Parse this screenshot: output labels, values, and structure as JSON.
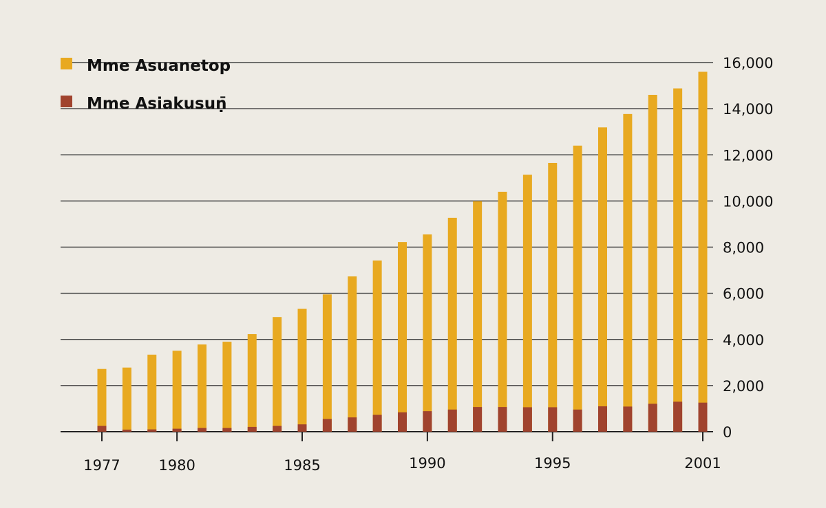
{
  "chart_data": {
    "type": "bar",
    "stacked": false,
    "overlay": true,
    "categories": [
      1977,
      1978,
      1979,
      1980,
      1981,
      1982,
      1983,
      1984,
      1985,
      1986,
      1987,
      1988,
      1989,
      1990,
      1991,
      1992,
      1993,
      1994,
      1995,
      1996,
      1997,
      1998,
      1999,
      2000,
      2001
    ],
    "series": [
      {
        "name": "Mme Asuanetop",
        "color": "#e8a920",
        "values": [
          2720,
          2780,
          3340,
          3510,
          3780,
          3900,
          4230,
          4970,
          5330,
          5950,
          6730,
          7420,
          8220,
          8550,
          9270,
          9990,
          10400,
          11140,
          11650,
          12400,
          13190,
          13770,
          14600,
          14880,
          15600
        ]
      },
      {
        "name": "Mme Asiakusuṇ̄",
        "color": "#a0432e",
        "values": [
          250,
          90,
          100,
          130,
          160,
          160,
          210,
          250,
          320,
          550,
          620,
          730,
          840,
          890,
          960,
          1070,
          1070,
          1060,
          1060,
          960,
          1100,
          1090,
          1210,
          1300,
          1260
        ]
      }
    ],
    "x_tick_labels": [
      "1977",
      "1980",
      "1985",
      "1990",
      "1995",
      "2001"
    ],
    "y_tick_labels": [
      "0",
      "2,000",
      "4,000",
      "6,000",
      "8,000",
      "10,000",
      "12,000",
      "14,000",
      "16,000"
    ],
    "ylim": [
      0,
      16000
    ],
    "y_axis_side": "right",
    "grid": true,
    "legend": "top-left",
    "title": "",
    "xlabel": "",
    "ylabel": ""
  }
}
